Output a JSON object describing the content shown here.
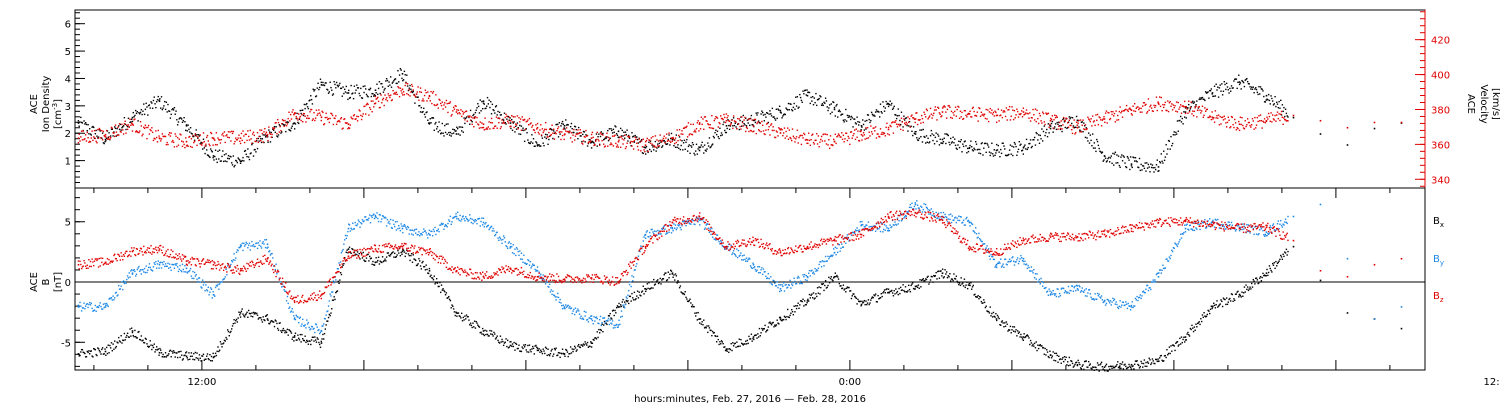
{
  "chart_data": [
    {
      "type": "scatter",
      "panel": "top",
      "left_axis": {
        "label_lines": [
          "ACE",
          "Ion Density",
          "[cm",
          "-3",
          "]"
        ],
        "ylim": [
          0,
          6.5
        ],
        "ticks": [
          1,
          2,
          3,
          4,
          5,
          6
        ],
        "color": "#000000"
      },
      "right_axis": {
        "label_lines": [
          "ACE",
          "Velocity",
          "[km/s]"
        ],
        "ylim": [
          335,
          437
        ],
        "ticks": [
          340,
          360,
          380,
          400,
          420
        ],
        "color": "#e00000"
      },
      "x_hours": [
        -2.35,
        22.65
      ],
      "series": [
        {
          "axis": "left",
          "color": "#000000",
          "x": [
            -2.3,
            -1.8,
            -1.3,
            -0.8,
            -0.3,
            0.2,
            0.7,
            1.2,
            1.7,
            2.2,
            2.7,
            3.2,
            3.7,
            4.2,
            4.7,
            5.2,
            5.7,
            6.2,
            6.7,
            7.2,
            7.7,
            8.2,
            8.7,
            9.2,
            9.7,
            10.2,
            10.7,
            11.2,
            11.7,
            12.2,
            12.7,
            13.2,
            13.7,
            14.2,
            14.7,
            15.2,
            15.7,
            16.2,
            16.7,
            17.2,
            17.7,
            18.2,
            18.7,
            19.2,
            19.7,
            20.2,
            20.7,
            21.2,
            21.7,
            22.2,
            22.7,
            23.2,
            23.7,
            24.2,
            24.7,
            25.2,
            25.7,
            26.2,
            26.7,
            27.2,
            27.7
          ],
          "y": [
            2.4,
            1.8,
            2.6,
            3.2,
            2.3,
            1.2,
            1.0,
            1.9,
            2.4,
            3.8,
            3.5,
            3.6,
            4.2,
            2.4,
            2.0,
            3.2,
            2.4,
            1.6,
            2.3,
            1.7,
            2.1,
            1.5,
            1.8,
            1.4,
            2.3,
            2.5,
            2.8,
            3.4,
            2.9,
            2.3,
            3.1,
            2.0,
            1.8,
            1.5,
            1.4,
            1.5,
            2.2,
            2.5,
            1.2,
            0.9,
            0.8,
            2.8,
            3.5,
            3.9,
            3.4,
            2.6,
            2.0,
            1.6,
            2.2,
            2.4,
            2.0,
            2.3,
            3.0,
            2.5,
            1.6,
            1.2,
            1.5,
            2.9,
            4.6,
            3.6,
            3.2
          ]
        },
        {
          "axis": "right",
          "color": "#e00000",
          "x": [
            -2.3,
            -1.8,
            -1.3,
            -0.8,
            -0.3,
            0.2,
            0.7,
            1.2,
            1.7,
            2.2,
            2.7,
            3.2,
            3.7,
            4.2,
            4.7,
            5.2,
            5.7,
            6.2,
            6.7,
            7.2,
            7.7,
            8.2,
            8.7,
            9.2,
            9.7,
            10.2,
            10.7,
            11.2,
            11.7,
            12.2,
            12.7,
            13.2,
            13.7,
            14.2,
            14.7,
            15.2,
            15.7,
            16.2,
            16.7,
            17.2,
            17.7,
            18.2,
            18.7,
            19.2,
            19.7,
            20.2,
            20.7,
            21.2,
            21.7,
            22.2,
            22.7,
            23.2,
            23.7,
            24.2,
            24.7,
            25.2,
            25.7,
            26.2,
            26.7,
            27.2,
            27.7
          ],
          "y": [
            364,
            366,
            372,
            364,
            362,
            364,
            364,
            366,
            378,
            376,
            372,
            384,
            392,
            388,
            379,
            372,
            374,
            370,
            366,
            364,
            362,
            360,
            364,
            372,
            374,
            371,
            367,
            363,
            362,
            366,
            369,
            375,
            379,
            378,
            377,
            379,
            374,
            370,
            375,
            380,
            384,
            382,
            376,
            372,
            374,
            377,
            374,
            370,
            373,
            373,
            376,
            378,
            380,
            384,
            386,
            380,
            377,
            375,
            374,
            375,
            373
          ]
        }
      ]
    },
    {
      "type": "scatter",
      "panel": "bottom",
      "left_axis": {
        "label_lines": [
          "ACE",
          "B",
          "[nT]"
        ],
        "ylim": [
          -7.3,
          7.8
        ],
        "ticks": [
          -5,
          0,
          5
        ],
        "color": "#000000"
      },
      "zero_line": true,
      "x_hours": [
        -2.35,
        22.65
      ],
      "series": [
        {
          "name": "Bx",
          "color": "#000000",
          "x": [
            -2.3,
            -1.8,
            -1.3,
            -0.8,
            -0.3,
            0.2,
            0.7,
            1.2,
            1.7,
            2.2,
            2.7,
            3.2,
            3.7,
            4.2,
            4.7,
            5.2,
            5.7,
            6.2,
            6.7,
            7.2,
            7.7,
            8.2,
            8.7,
            9.2,
            9.7,
            10.2,
            10.7,
            11.2,
            11.7,
            12.2,
            12.7,
            13.2,
            13.7,
            14.2,
            14.7,
            15.2,
            15.7,
            16.2,
            16.7,
            17.2,
            17.7,
            18.2,
            18.7,
            19.2,
            19.7,
            20.2,
            20.7,
            21.2,
            21.7,
            22.2,
            22.7,
            23.2,
            23.7,
            24.2,
            24.7,
            25.2,
            25.7,
            26.2,
            26.7,
            27.2,
            27.7
          ],
          "y": [
            -5.9,
            -5.7,
            -4.0,
            -5.8,
            -6.1,
            -6.2,
            -2.5,
            -3.0,
            -4.5,
            -5.0,
            2.8,
            1.7,
            2.6,
            1.0,
            -2.5,
            -4.0,
            -5.2,
            -5.6,
            -5.9,
            -5.0,
            -2.0,
            -0.5,
            0.8,
            -3.0,
            -5.5,
            -4.5,
            -3.0,
            -1.5,
            0.5,
            -1.8,
            -0.8,
            -0.3,
            0.8,
            -0.2,
            -3.0,
            -4.5,
            -6.0,
            -6.8,
            -7.0,
            -6.8,
            -6.5,
            -4.5,
            -2.0,
            -1.0,
            0.8,
            3.0,
            0.2,
            -2.5,
            -3.0,
            -3.8,
            -4.2,
            -5.0,
            -5.5,
            -5.0,
            -4.0,
            -4.2,
            -3.8,
            -3.0,
            -4.6,
            -4.3,
            -4.0
          ]
        },
        {
          "name": "By",
          "color": "#1e88e5",
          "x": [
            -2.3,
            -1.8,
            -1.3,
            -0.8,
            -0.3,
            0.2,
            0.7,
            1.2,
            1.7,
            2.2,
            2.7,
            3.2,
            3.7,
            4.2,
            4.7,
            5.2,
            5.7,
            6.2,
            6.7,
            7.2,
            7.7,
            8.2,
            8.7,
            9.2,
            9.7,
            10.2,
            10.7,
            11.2,
            11.7,
            12.2,
            12.7,
            13.2,
            13.7,
            14.2,
            14.7,
            15.2,
            15.7,
            16.2,
            16.7,
            17.2,
            17.7,
            18.2,
            18.7,
            19.2,
            19.7,
            20.2,
            20.7,
            21.2,
            21.7,
            22.2,
            22.7,
            23.2,
            23.7,
            24.2,
            24.7,
            25.2,
            25.7,
            26.2,
            26.7,
            27.2,
            27.7
          ],
          "y": [
            -2.0,
            -2.0,
            0.8,
            1.5,
            1.2,
            -1.0,
            3.0,
            3.2,
            -3.0,
            -4.0,
            4.5,
            5.5,
            4.5,
            4.0,
            5.5,
            5.0,
            3.0,
            1.0,
            -2.0,
            -3.0,
            -3.5,
            4.0,
            4.5,
            5.2,
            3.0,
            1.5,
            -0.5,
            0.5,
            2.5,
            4.8,
            4.5,
            6.5,
            5.5,
            5.0,
            1.5,
            2.0,
            -1.0,
            -0.5,
            -1.5,
            -2.0,
            0.5,
            4.5,
            5.0,
            4.6,
            4.2,
            5.5,
            6.5,
            2.0,
            -3.0,
            -2.0,
            1.5,
            2.0,
            0.5,
            -0.5,
            -2.5,
            -2.0,
            -2.5,
            1.5,
            3.0,
            2.0,
            3.2
          ]
        },
        {
          "name": "Bz",
          "color": "#e00000",
          "x": [
            -2.3,
            -1.8,
            -1.3,
            -0.8,
            -0.3,
            0.2,
            0.7,
            1.2,
            1.7,
            2.2,
            2.7,
            3.2,
            3.7,
            4.2,
            4.7,
            5.2,
            5.7,
            6.2,
            6.7,
            7.2,
            7.7,
            8.2,
            8.7,
            9.2,
            9.7,
            10.2,
            10.7,
            11.2,
            11.7,
            12.2,
            12.7,
            13.2,
            13.7,
            14.2,
            14.7,
            15.2,
            15.7,
            16.2,
            16.7,
            17.2,
            17.7,
            18.2,
            18.7,
            19.2,
            19.7,
            20.2,
            20.7,
            21.2,
            21.7,
            22.2,
            22.7,
            23.2,
            23.7,
            24.2,
            24.7,
            25.2,
            25.7,
            26.2,
            26.7,
            27.2,
            27.7
          ],
          "y": [
            1.5,
            1.7,
            2.6,
            2.8,
            1.8,
            1.5,
            1.0,
            2.0,
            -1.5,
            -1.0,
            2.2,
            2.8,
            3.0,
            2.5,
            1.0,
            0.5,
            1.2,
            0.5,
            0.3,
            0.4,
            0.1,
            3.0,
            5.0,
            5.5,
            3.0,
            3.5,
            2.5,
            3.0,
            3.5,
            4.0,
            5.5,
            5.8,
            5.2,
            3.0,
            2.5,
            3.5,
            3.8,
            3.8,
            4.0,
            4.5,
            5.0,
            5.1,
            4.8,
            4.5,
            4.6,
            3.5,
            1.0,
            0.5,
            1.5,
            2.0,
            1.5,
            0.5,
            1.0,
            0.5,
            -1.0,
            -2.0,
            -1.0,
            0.5,
            1.0,
            2.0,
            1.0
          ]
        }
      ],
      "legend": [
        {
          "main": "B",
          "sub": "x",
          "color": "#000000"
        },
        {
          "main": "B",
          "sub": "y",
          "color": "#1e88e5"
        },
        {
          "main": "B",
          "sub": "z",
          "color": "#e00000"
        }
      ]
    }
  ],
  "x_axis": {
    "tick_labels": [
      {
        "hour": 0,
        "label": "12:00"
      },
      {
        "hour": 12,
        "label": "0:00"
      },
      {
        "hour": 24,
        "label": "12:00"
      }
    ],
    "title": "hours:minutes, Feb. 27, 2016 — Feb. 28, 2016"
  }
}
